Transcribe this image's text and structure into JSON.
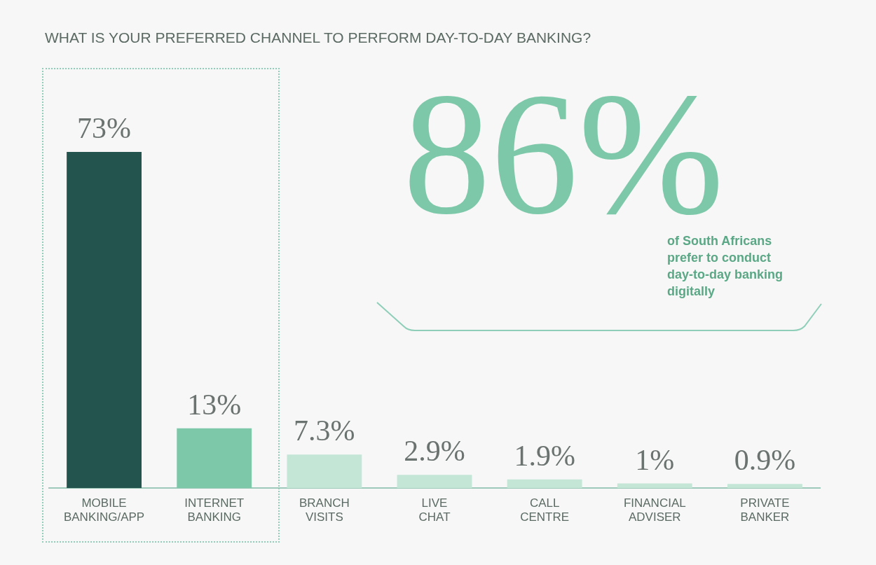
{
  "chart_data": {
    "type": "bar",
    "title": "WHAT IS YOUR PREFERRED CHANNEL TO PERFORM DAY-TO-DAY BANKING?",
    "categories": [
      "MOBILE BANKING/APP",
      "INTERNET BANKING",
      "BRANCH VISITS",
      "LIVE CHAT",
      "CALL CENTRE",
      "FINANCIAL ADVISER",
      "PRIVATE BANKER"
    ],
    "values": [
      73,
      13,
      7.3,
      2.9,
      1.9,
      1,
      0.9
    ],
    "colors": [
      "#23554e",
      "#7ec8aa",
      "#c4e6d7",
      "#c4e6d7",
      "#c4e6d7",
      "#c4e6d7",
      "#c4e6d7"
    ],
    "value_labels": [
      "73%",
      "13%",
      "7.3%",
      "2.9%",
      "1.9%",
      "1%",
      "0.9%"
    ],
    "annotations": [
      "86%",
      "of South Africans prefer to conduct day-to-day banking digitally"
    ],
    "grid": false,
    "legend": false
  }
}
